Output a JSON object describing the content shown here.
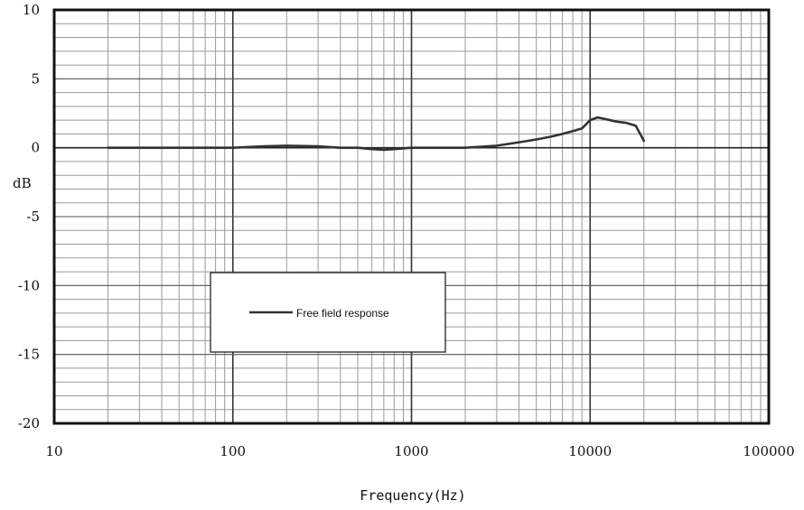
{
  "chart_data": {
    "type": "line",
    "title": "",
    "xlabel": "Frequency(Hz)",
    "ylabel": "dB",
    "xscale": "log",
    "xlim": [
      10,
      100000
    ],
    "ylim": [
      -20,
      10
    ],
    "x_ticks": [
      10,
      100,
      1000,
      10000,
      100000
    ],
    "x_tick_labels": [
      "10",
      "100",
      "1000",
      "10000",
      "100000"
    ],
    "y_ticks": [
      10,
      5,
      0,
      -5,
      -10,
      -15,
      -20
    ],
    "y_tick_labels": [
      "10",
      "5",
      "0",
      "-5",
      "-10",
      "-15",
      "-20"
    ],
    "grid": true,
    "legend_position": "lower-left",
    "series": [
      {
        "name": "Free field response",
        "color": "#333333",
        "x": [
          20,
          50,
          100,
          150,
          200,
          300,
          400,
          500,
          600,
          700,
          800,
          1000,
          1500,
          2000,
          3000,
          4000,
          5000,
          6000,
          7000,
          8000,
          9000,
          10000,
          11000,
          12000,
          14000,
          16000,
          18000,
          20000
        ],
        "y": [
          0,
          0,
          0,
          0.1,
          0.15,
          0.1,
          0.0,
          0.0,
          -0.1,
          -0.15,
          -0.1,
          0.0,
          0.0,
          0.0,
          0.15,
          0.4,
          0.6,
          0.8,
          1.0,
          1.2,
          1.4,
          2.0,
          2.2,
          2.1,
          1.9,
          1.8,
          1.6,
          0.5
        ]
      }
    ]
  }
}
